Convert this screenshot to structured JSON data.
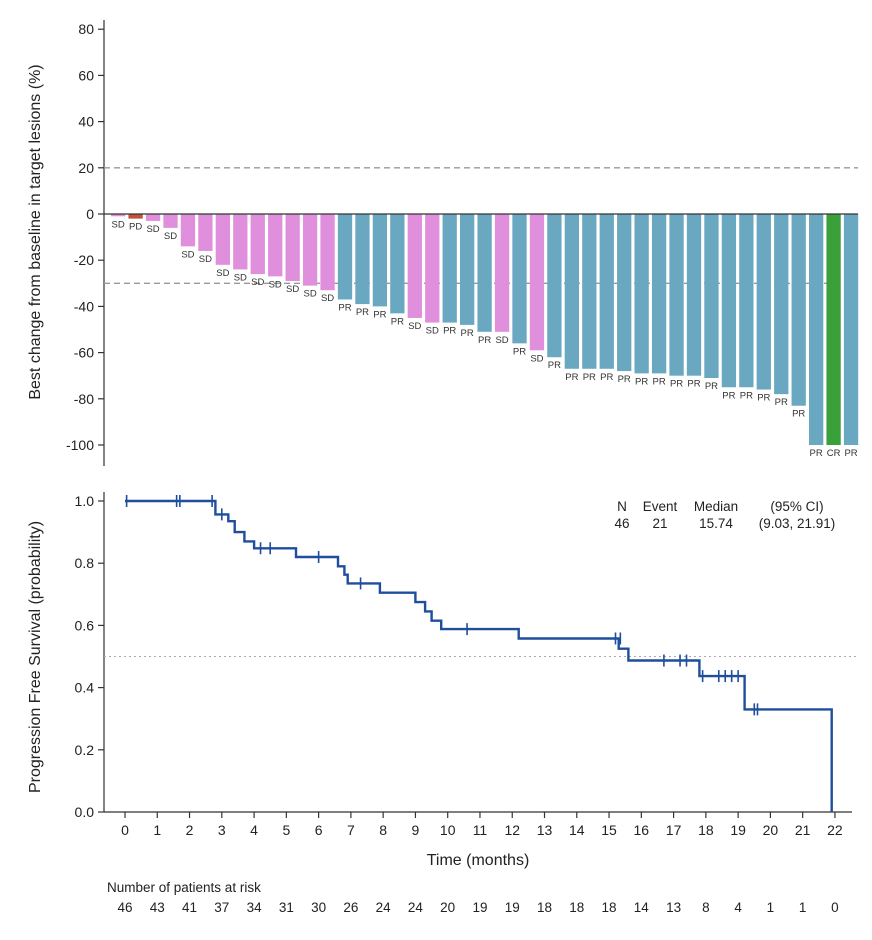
{
  "chart_data": [
    {
      "type": "bar",
      "title": "",
      "ylabel": "Best change from baseline in target lesions (%)",
      "xlabel": "",
      "ylim": [
        -110,
        85
      ],
      "yticks": [
        80,
        60,
        40,
        20,
        0,
        -20,
        -40,
        -60,
        -80,
        -100
      ],
      "reference_lines": [
        20,
        -30
      ],
      "colors": {
        "SD": "#e08fdc",
        "PD": "#c0523a",
        "PR": "#6aa8c2",
        "CR": "#3aa13a"
      },
      "bars": [
        {
          "value": -1,
          "response": "SD"
        },
        {
          "value": -2,
          "response": "PD"
        },
        {
          "value": -3,
          "response": "SD"
        },
        {
          "value": -6,
          "response": "SD"
        },
        {
          "value": -14,
          "response": "SD"
        },
        {
          "value": -16,
          "response": "SD"
        },
        {
          "value": -22,
          "response": "SD"
        },
        {
          "value": -24,
          "response": "SD"
        },
        {
          "value": -26,
          "response": "SD"
        },
        {
          "value": -27,
          "response": "SD"
        },
        {
          "value": -29,
          "response": "SD"
        },
        {
          "value": -31,
          "response": "SD"
        },
        {
          "value": -33,
          "response": "SD"
        },
        {
          "value": -37,
          "response": "PR"
        },
        {
          "value": -39,
          "response": "PR"
        },
        {
          "value": -40,
          "response": "PR"
        },
        {
          "value": -43,
          "response": "PR"
        },
        {
          "value": -45,
          "response": "SD"
        },
        {
          "value": -47,
          "response": "SD"
        },
        {
          "value": -47,
          "response": "PR"
        },
        {
          "value": -48,
          "response": "PR"
        },
        {
          "value": -51,
          "response": "PR"
        },
        {
          "value": -51,
          "response": "SD"
        },
        {
          "value": -56,
          "response": "PR"
        },
        {
          "value": -59,
          "response": "SD"
        },
        {
          "value": -62,
          "response": "PR"
        },
        {
          "value": -67,
          "response": "PR"
        },
        {
          "value": -67,
          "response": "PR"
        },
        {
          "value": -67,
          "response": "PR"
        },
        {
          "value": -68,
          "response": "PR"
        },
        {
          "value": -69,
          "response": "PR"
        },
        {
          "value": -69,
          "response": "PR"
        },
        {
          "value": -70,
          "response": "PR"
        },
        {
          "value": -70,
          "response": "PR"
        },
        {
          "value": -71,
          "response": "PR"
        },
        {
          "value": -75,
          "response": "PR"
        },
        {
          "value": -75,
          "response": "PR"
        },
        {
          "value": -76,
          "response": "PR"
        },
        {
          "value": -78,
          "response": "PR"
        },
        {
          "value": -83,
          "response": "PR"
        },
        {
          "value": -100,
          "response": "PR"
        },
        {
          "value": -100,
          "response": "CR"
        },
        {
          "value": -100,
          "response": "PR"
        }
      ]
    },
    {
      "type": "line",
      "title": "",
      "xlabel": "Time (months)",
      "ylabel": "Progression Free Survival (probability)",
      "xlim": [
        -0.5,
        22.5
      ],
      "ylim": [
        0,
        1.03
      ],
      "xticks": [
        0,
        1,
        2,
        3,
        4,
        5,
        6,
        7,
        8,
        9,
        10,
        11,
        12,
        13,
        14,
        15,
        16,
        17,
        18,
        19,
        20,
        21,
        22
      ],
      "yticks": [
        1.0,
        0.8,
        0.6,
        0.4,
        0.2,
        0.0
      ],
      "reference_line": 0.5,
      "line_color": "#1f4e9c",
      "curve": [
        [
          0,
          1.0
        ],
        [
          2.8,
          1.0
        ],
        [
          2.8,
          0.957
        ],
        [
          3.2,
          0.957
        ],
        [
          3.2,
          0.935
        ],
        [
          3.4,
          0.935
        ],
        [
          3.4,
          0.9
        ],
        [
          3.7,
          0.9
        ],
        [
          3.7,
          0.87
        ],
        [
          4.0,
          0.87
        ],
        [
          4.0,
          0.848
        ],
        [
          5.3,
          0.848
        ],
        [
          5.3,
          0.82
        ],
        [
          6.6,
          0.82
        ],
        [
          6.6,
          0.79
        ],
        [
          6.8,
          0.79
        ],
        [
          6.8,
          0.763
        ],
        [
          6.9,
          0.763
        ],
        [
          6.9,
          0.735
        ],
        [
          7.9,
          0.735
        ],
        [
          7.9,
          0.705
        ],
        [
          9.0,
          0.705
        ],
        [
          9.0,
          0.675
        ],
        [
          9.3,
          0.675
        ],
        [
          9.3,
          0.645
        ],
        [
          9.5,
          0.645
        ],
        [
          9.5,
          0.615
        ],
        [
          9.8,
          0.615
        ],
        [
          9.8,
          0.588
        ],
        [
          12.2,
          0.588
        ],
        [
          12.2,
          0.558
        ],
        [
          15.3,
          0.558
        ],
        [
          15.3,
          0.525
        ],
        [
          15.6,
          0.525
        ],
        [
          15.6,
          0.487
        ],
        [
          17.8,
          0.487
        ],
        [
          17.8,
          0.437
        ],
        [
          19.2,
          0.437
        ],
        [
          19.2,
          0.33
        ],
        [
          21.9,
          0.33
        ],
        [
          21.9,
          0.0
        ]
      ],
      "censored": [
        [
          0.05,
          1.0
        ],
        [
          1.6,
          1.0
        ],
        [
          1.7,
          1.0
        ],
        [
          2.7,
          1.0
        ],
        [
          3.0,
          0.957
        ],
        [
          4.2,
          0.848
        ],
        [
          4.5,
          0.848
        ],
        [
          6.0,
          0.82
        ],
        [
          7.3,
          0.735
        ],
        [
          10.6,
          0.588
        ],
        [
          15.2,
          0.558
        ],
        [
          15.35,
          0.558
        ],
        [
          16.7,
          0.487
        ],
        [
          17.2,
          0.487
        ],
        [
          17.4,
          0.487
        ],
        [
          17.9,
          0.437
        ],
        [
          18.4,
          0.437
        ],
        [
          18.6,
          0.437
        ],
        [
          18.8,
          0.437
        ],
        [
          19.0,
          0.437
        ],
        [
          19.5,
          0.33
        ],
        [
          19.6,
          0.33
        ]
      ],
      "stats": {
        "headers": [
          "N",
          "Event",
          "Median",
          "(95% CI)"
        ],
        "values": [
          "46",
          "21",
          "15.74",
          "(9.03, 21.91)"
        ]
      },
      "at_risk": {
        "label": "Number of patients at risk",
        "values": [
          46,
          43,
          41,
          37,
          34,
          31,
          30,
          26,
          24,
          24,
          20,
          19,
          19,
          18,
          18,
          18,
          14,
          13,
          8,
          4,
          1,
          1,
          0
        ]
      }
    }
  ]
}
